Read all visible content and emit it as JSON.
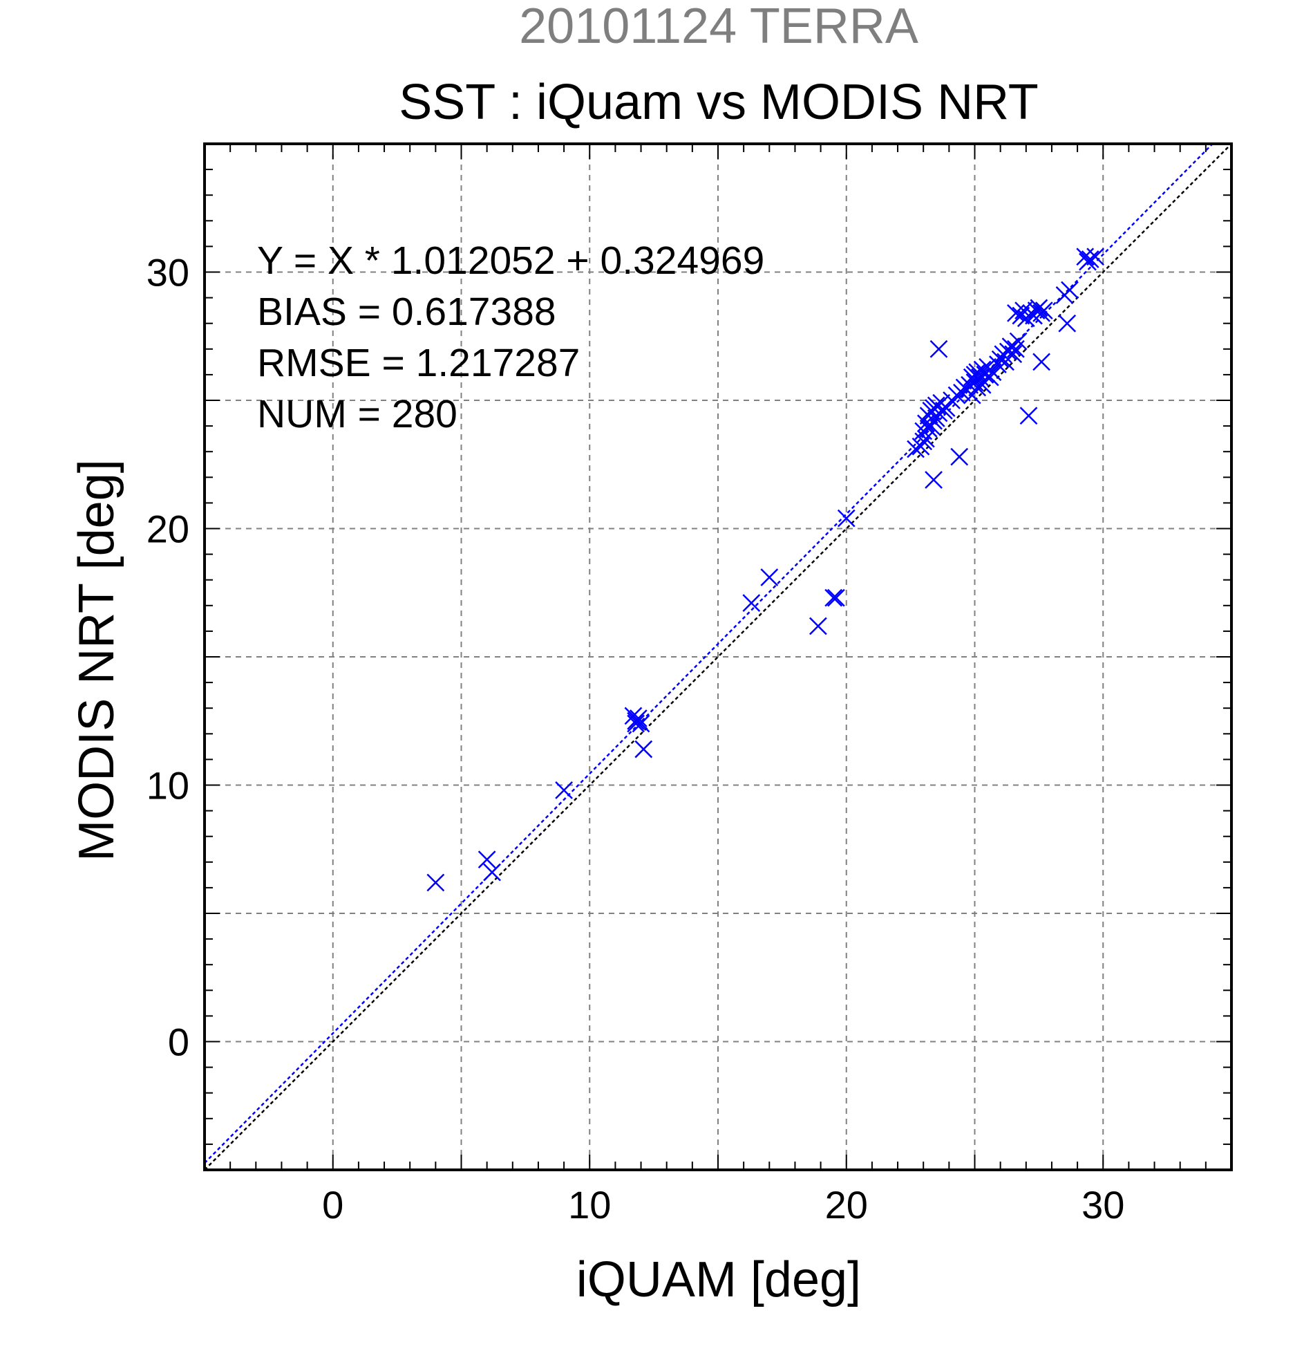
{
  "chart_data": {
    "type": "scatter",
    "supertitle": "20101124 TERRA",
    "title": "SST : iQuam vs MODIS NRT",
    "xlabel": "iQUAM [deg]",
    "ylabel": "MODIS NRT [deg]",
    "xlim": [
      -5,
      35
    ],
    "ylim": [
      -5,
      35
    ],
    "xticks": [
      0,
      10,
      20,
      30
    ],
    "yticks": [
      0,
      10,
      20,
      30
    ],
    "grid": true,
    "annotations": {
      "equation": "Y = X * 1.012052 + 0.324969",
      "bias": "BIAS = 0.617388",
      "rmse": "RMSE = 1.217287",
      "num": "NUM = 280"
    },
    "fit_line": {
      "slope": 1.012052,
      "intercept": 0.324969,
      "color": "#0000ff"
    },
    "identity_line": {
      "slope": 1,
      "intercept": 0,
      "color": "#000000"
    },
    "marker_color": "#0000ff",
    "series": [
      {
        "points": [
          [
            4.0,
            6.2
          ],
          [
            6.0,
            7.1
          ],
          [
            6.2,
            6.6
          ],
          [
            9.0,
            9.8
          ],
          [
            11.7,
            12.7
          ],
          [
            11.8,
            12.5
          ],
          [
            11.9,
            12.6
          ],
          [
            12.0,
            12.4
          ],
          [
            11.8,
            12.4
          ],
          [
            12.1,
            11.4
          ],
          [
            16.3,
            17.1
          ],
          [
            17.0,
            18.1
          ],
          [
            18.9,
            16.2
          ],
          [
            19.5,
            17.3
          ],
          [
            19.6,
            17.3
          ],
          [
            20.0,
            20.4
          ],
          [
            22.7,
            23.1
          ],
          [
            22.9,
            23.2
          ],
          [
            23.0,
            23.4
          ],
          [
            23.0,
            23.8
          ],
          [
            23.1,
            23.5
          ],
          [
            23.1,
            24.1
          ],
          [
            23.2,
            23.9
          ],
          [
            23.2,
            24.4
          ],
          [
            23.3,
            24.0
          ],
          [
            23.3,
            24.6
          ],
          [
            23.4,
            24.2
          ],
          [
            23.4,
            24.7
          ],
          [
            23.5,
            24.3
          ],
          [
            23.5,
            24.8
          ],
          [
            23.6,
            24.5
          ],
          [
            23.7,
            24.9
          ],
          [
            23.8,
            24.6
          ],
          [
            23.9,
            24.7
          ],
          [
            23.4,
            21.9
          ],
          [
            23.6,
            27.0
          ],
          [
            24.1,
            25.0
          ],
          [
            24.3,
            25.2
          ],
          [
            24.4,
            22.8
          ],
          [
            24.5,
            25.3
          ],
          [
            24.6,
            25.5
          ],
          [
            24.7,
            25.4
          ],
          [
            24.8,
            25.6
          ],
          [
            24.9,
            25.9
          ],
          [
            24.9,
            25.2
          ],
          [
            25.0,
            26.0
          ],
          [
            25.0,
            25.7
          ],
          [
            25.1,
            26.1
          ],
          [
            25.1,
            25.5
          ],
          [
            25.2,
            25.9
          ],
          [
            25.3,
            26.2
          ],
          [
            25.3,
            25.6
          ],
          [
            25.4,
            26.0
          ],
          [
            25.5,
            26.3
          ],
          [
            25.6,
            25.9
          ],
          [
            25.7,
            26.1
          ],
          [
            25.9,
            26.4
          ],
          [
            26.0,
            26.6
          ],
          [
            26.1,
            26.8
          ],
          [
            26.2,
            26.5
          ],
          [
            26.3,
            26.9
          ],
          [
            26.4,
            27.1
          ],
          [
            26.5,
            26.8
          ],
          [
            26.6,
            27.0
          ],
          [
            26.7,
            27.3
          ],
          [
            26.6,
            28.4
          ],
          [
            26.8,
            28.3
          ],
          [
            26.9,
            28.5
          ],
          [
            27.0,
            28.2
          ],
          [
            27.1,
            24.4
          ],
          [
            27.2,
            28.4
          ],
          [
            27.3,
            28.3
          ],
          [
            27.4,
            28.5
          ],
          [
            27.5,
            28.6
          ],
          [
            27.6,
            28.4
          ],
          [
            27.7,
            28.5
          ],
          [
            27.6,
            26.5
          ],
          [
            28.5,
            29.1
          ],
          [
            28.6,
            28.0
          ],
          [
            28.7,
            29.3
          ],
          [
            29.3,
            30.6
          ],
          [
            29.4,
            30.4
          ],
          [
            29.5,
            30.5
          ],
          [
            29.7,
            30.6
          ]
        ]
      }
    ]
  }
}
